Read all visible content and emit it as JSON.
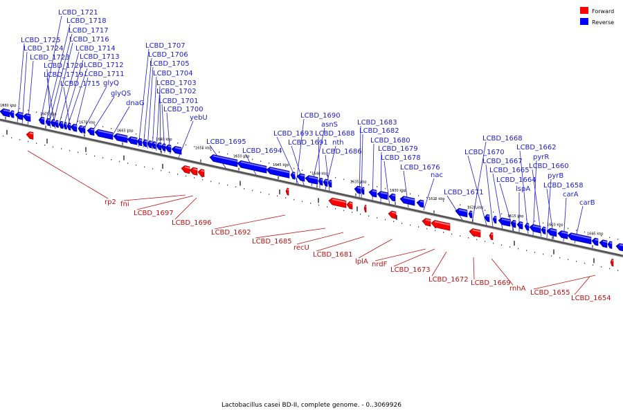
{
  "caption": "Lactobacillus casei BD-II, complete genome. - 0..3069926",
  "legend": [
    {
      "label": "Forward",
      "color": "#ff0000"
    },
    {
      "label": "Reverse",
      "color": "#0000ff"
    }
  ],
  "ticks": [
    "1680 kbp",
    "1675 kbp",
    "1670 kbp",
    "1665 kbp",
    "1660 kbp",
    "1655 kbp",
    "1650 kbp",
    "1645 kbp",
    "1640 kbp",
    "1635 kbp",
    "1630 kbp",
    "1625 kbp",
    "1620 kbp",
    "1615 kbp",
    "1610 kbp",
    "1605 kbp"
  ],
  "reverse_genes": [
    "LCBD_1721",
    "LCBD_1718",
    "LCBD_1717",
    "LCBD_1716",
    "LCBD_1725",
    "LCBD_1724",
    "LCBD_1714",
    "LCBD_1723",
    "LCBD_1713",
    "LCBD_1720",
    "LCBD_1712",
    "LCBD_1719",
    "LCBD_1711",
    "LCBD_1715",
    "glyQ",
    "glyQS",
    "dnaG",
    "LCBD_1707",
    "LCBD_1706",
    "LCBD_1705",
    "LCBD_1704",
    "LCBD_1703",
    "LCBD_1702",
    "LCBD_1701",
    "LCBD_1700",
    "yebU",
    "LCBD_1695",
    "LCBD_1694",
    "LCBD_1690",
    "asnS",
    "LCBD_1693",
    "LCBD_1688",
    "LCBD_1691",
    "nth",
    "LCBD_1686",
    "LCBD_1683",
    "LCBD_1682",
    "LCBD_1680",
    "LCBD_1679",
    "LCBD_1678",
    "LCBD_1676",
    "nac",
    "LCBD_1671",
    "LCBD_1668",
    "LCBD_1670",
    "LCBD_1667",
    "LCBD_1665",
    "LCBD_1664",
    "lspA",
    "LCBD_1662",
    "pyrR",
    "LCBD_1660",
    "pyrB",
    "LCBD_1658",
    "carA",
    "carB"
  ],
  "forward_genes": [
    "rp2",
    "fni",
    "LCBD_1697",
    "LCBD_1696",
    "LCBD_1692",
    "LCBD_1685",
    "recU",
    "LCBD_1681",
    "lplA",
    "nrdF",
    "LCBD_1673",
    "LCBD_1672",
    "LCBD_1669",
    "rnhA",
    "LCBD_1655",
    "LCBD_1654"
  ]
}
